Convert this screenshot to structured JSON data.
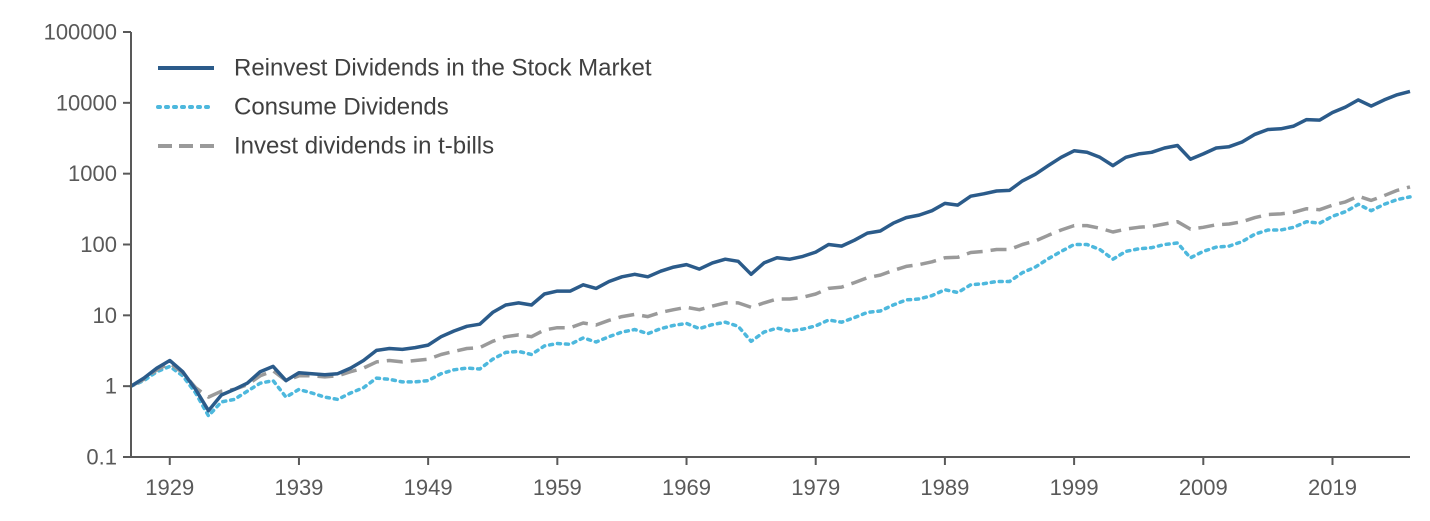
{
  "chart_data": {
    "type": "line",
    "title": "",
    "xlabel": "",
    "ylabel": "",
    "yscale": "log",
    "ylim": [
      0.1,
      100000
    ],
    "xlim": [
      1926,
      2025
    ],
    "y_ticks": [
      {
        "value": 0.1,
        "label": "0.1"
      },
      {
        "value": 1,
        "label": "1"
      },
      {
        "value": 10,
        "label": "10"
      },
      {
        "value": 100,
        "label": "100"
      },
      {
        "value": 1000,
        "label": "1000"
      },
      {
        "value": 10000,
        "label": "10000"
      },
      {
        "value": 100000,
        "label": "100000"
      }
    ],
    "x_ticks": [
      {
        "value": 1929,
        "label": "1929"
      },
      {
        "value": 1939,
        "label": "1939"
      },
      {
        "value": 1949,
        "label": "1949"
      },
      {
        "value": 1959,
        "label": "1959"
      },
      {
        "value": 1969,
        "label": "1969"
      },
      {
        "value": 1979,
        "label": "1979"
      },
      {
        "value": 1989,
        "label": "1989"
      },
      {
        "value": 1999,
        "label": "1999"
      },
      {
        "value": 2009,
        "label": "2009"
      },
      {
        "value": 2019,
        "label": "2019"
      }
    ],
    "legend_position": "top-left",
    "series": [
      {
        "name": "Reinvest Dividends in the Stock Market",
        "color": "#2b5b8a",
        "style": "solid",
        "points": [
          [
            1926,
            1
          ],
          [
            1927,
            1.3
          ],
          [
            1928,
            1.8
          ],
          [
            1929,
            2.3
          ],
          [
            1930,
            1.6
          ],
          [
            1931,
            0.9
          ],
          [
            1932,
            0.45
          ],
          [
            1933,
            0.75
          ],
          [
            1934,
            0.9
          ],
          [
            1935,
            1.1
          ],
          [
            1936,
            1.6
          ],
          [
            1937,
            1.9
          ],
          [
            1938,
            1.2
          ],
          [
            1939,
            1.55
          ],
          [
            1940,
            1.5
          ],
          [
            1941,
            1.45
          ],
          [
            1942,
            1.5
          ],
          [
            1943,
            1.8
          ],
          [
            1944,
            2.3
          ],
          [
            1945,
            3.2
          ],
          [
            1946,
            3.4
          ],
          [
            1947,
            3.3
          ],
          [
            1948,
            3.5
          ],
          [
            1949,
            3.8
          ],
          [
            1950,
            5
          ],
          [
            1951,
            6
          ],
          [
            1952,
            7
          ],
          [
            1953,
            7.5
          ],
          [
            1954,
            11
          ],
          [
            1955,
            14
          ],
          [
            1956,
            15
          ],
          [
            1957,
            14
          ],
          [
            1958,
            20
          ],
          [
            1959,
            22
          ],
          [
            1960,
            22
          ],
          [
            1961,
            27
          ],
          [
            1962,
            24
          ],
          [
            1963,
            30
          ],
          [
            1964,
            35
          ],
          [
            1965,
            38
          ],
          [
            1966,
            35
          ],
          [
            1967,
            42
          ],
          [
            1968,
            48
          ],
          [
            1969,
            52
          ],
          [
            1970,
            45
          ],
          [
            1971,
            55
          ],
          [
            1972,
            62
          ],
          [
            1973,
            58
          ],
          [
            1974,
            38
          ],
          [
            1975,
            55
          ],
          [
            1976,
            65
          ],
          [
            1977,
            62
          ],
          [
            1978,
            68
          ],
          [
            1979,
            78
          ],
          [
            1980,
            100
          ],
          [
            1981,
            95
          ],
          [
            1982,
            115
          ],
          [
            1983,
            145
          ],
          [
            1984,
            155
          ],
          [
            1985,
            200
          ],
          [
            1986,
            240
          ],
          [
            1987,
            260
          ],
          [
            1988,
            300
          ],
          [
            1989,
            380
          ],
          [
            1990,
            360
          ],
          [
            1991,
            480
          ],
          [
            1992,
            520
          ],
          [
            1993,
            570
          ],
          [
            1994,
            580
          ],
          [
            1995,
            790
          ],
          [
            1996,
            980
          ],
          [
            1997,
            1300
          ],
          [
            1998,
            1700
          ],
          [
            1999,
            2100
          ],
          [
            2000,
            2000
          ],
          [
            2001,
            1700
          ],
          [
            2002,
            1300
          ],
          [
            2003,
            1700
          ],
          [
            2004,
            1900
          ],
          [
            2005,
            2000
          ],
          [
            2006,
            2300
          ],
          [
            2007,
            2500
          ],
          [
            2008,
            1600
          ],
          [
            2009,
            1900
          ],
          [
            2010,
            2300
          ],
          [
            2011,
            2400
          ],
          [
            2012,
            2800
          ],
          [
            2013,
            3600
          ],
          [
            2014,
            4200
          ],
          [
            2015,
            4300
          ],
          [
            2016,
            4700
          ],
          [
            2017,
            5800
          ],
          [
            2018,
            5700
          ],
          [
            2019,
            7300
          ],
          [
            2020,
            8700
          ],
          [
            2021,
            11000
          ],
          [
            2022,
            9000
          ],
          [
            2023,
            11000
          ],
          [
            2024,
            13000
          ],
          [
            2025,
            14500
          ]
        ]
      },
      {
        "name": "Consume Dividends",
        "color": "#4db8dd",
        "style": "dotted",
        "points": [
          [
            1926,
            1
          ],
          [
            1927,
            1.2
          ],
          [
            1928,
            1.6
          ],
          [
            1929,
            1.9
          ],
          [
            1930,
            1.4
          ],
          [
            1931,
            0.8
          ],
          [
            1932,
            0.38
          ],
          [
            1933,
            0.6
          ],
          [
            1934,
            0.65
          ],
          [
            1935,
            0.85
          ],
          [
            1936,
            1.1
          ],
          [
            1937,
            1.2
          ],
          [
            1938,
            0.7
          ],
          [
            1939,
            0.9
          ],
          [
            1940,
            0.8
          ],
          [
            1941,
            0.7
          ],
          [
            1942,
            0.65
          ],
          [
            1943,
            0.8
          ],
          [
            1944,
            0.95
          ],
          [
            1945,
            1.3
          ],
          [
            1946,
            1.25
          ],
          [
            1947,
            1.15
          ],
          [
            1948,
            1.15
          ],
          [
            1949,
            1.2
          ],
          [
            1950,
            1.5
          ],
          [
            1951,
            1.7
          ],
          [
            1952,
            1.8
          ],
          [
            1953,
            1.75
          ],
          [
            1954,
            2.4
          ],
          [
            1955,
            3
          ],
          [
            1956,
            3.1
          ],
          [
            1957,
            2.8
          ],
          [
            1958,
            3.7
          ],
          [
            1959,
            4
          ],
          [
            1960,
            3.9
          ],
          [
            1961,
            4.8
          ],
          [
            1962,
            4.2
          ],
          [
            1963,
            5
          ],
          [
            1964,
            5.8
          ],
          [
            1965,
            6.3
          ],
          [
            1966,
            5.5
          ],
          [
            1967,
            6.5
          ],
          [
            1968,
            7.2
          ],
          [
            1969,
            7.7
          ],
          [
            1970,
            6.5
          ],
          [
            1971,
            7.4
          ],
          [
            1972,
            8
          ],
          [
            1973,
            7
          ],
          [
            1974,
            4.3
          ],
          [
            1975,
            5.8
          ],
          [
            1976,
            6.6
          ],
          [
            1977,
            6
          ],
          [
            1978,
            6.4
          ],
          [
            1979,
            7.1
          ],
          [
            1980,
            8.6
          ],
          [
            1981,
            8
          ],
          [
            1982,
            9.3
          ],
          [
            1983,
            11
          ],
          [
            1984,
            11.5
          ],
          [
            1985,
            14
          ],
          [
            1986,
            16.5
          ],
          [
            1987,
            17
          ],
          [
            1988,
            19
          ],
          [
            1989,
            23
          ],
          [
            1990,
            21
          ],
          [
            1991,
            27
          ],
          [
            1992,
            28
          ],
          [
            1993,
            30
          ],
          [
            1994,
            30
          ],
          [
            1995,
            40
          ],
          [
            1996,
            48
          ],
          [
            1997,
            63
          ],
          [
            1998,
            80
          ],
          [
            1999,
            100
          ],
          [
            2000,
            100
          ],
          [
            2001,
            85
          ],
          [
            2002,
            62
          ],
          [
            2003,
            80
          ],
          [
            2004,
            87
          ],
          [
            2005,
            90
          ],
          [
            2006,
            100
          ],
          [
            2007,
            105
          ],
          [
            2008,
            65
          ],
          [
            2009,
            80
          ],
          [
            2010,
            92
          ],
          [
            2011,
            95
          ],
          [
            2012,
            110
          ],
          [
            2013,
            140
          ],
          [
            2014,
            160
          ],
          [
            2015,
            160
          ],
          [
            2016,
            175
          ],
          [
            2017,
            210
          ],
          [
            2018,
            200
          ],
          [
            2019,
            250
          ],
          [
            2020,
            290
          ],
          [
            2021,
            370
          ],
          [
            2022,
            300
          ],
          [
            2023,
            370
          ],
          [
            2024,
            430
          ],
          [
            2025,
            470
          ]
        ]
      },
      {
        "name": "Invest dividends in t-bills",
        "color": "#9a9a9a",
        "style": "dashed",
        "points": [
          [
            1926,
            1
          ],
          [
            1927,
            1.25
          ],
          [
            1928,
            1.7
          ],
          [
            1929,
            2.1
          ],
          [
            1930,
            1.55
          ],
          [
            1931,
            0.95
          ],
          [
            1932,
            0.7
          ],
          [
            1933,
            0.85
          ],
          [
            1934,
            0.9
          ],
          [
            1935,
            1.05
          ],
          [
            1936,
            1.4
          ],
          [
            1937,
            1.65
          ],
          [
            1938,
            1.2
          ],
          [
            1939,
            1.4
          ],
          [
            1940,
            1.4
          ],
          [
            1941,
            1.35
          ],
          [
            1942,
            1.4
          ],
          [
            1943,
            1.6
          ],
          [
            1944,
            1.8
          ],
          [
            1945,
            2.2
          ],
          [
            1946,
            2.3
          ],
          [
            1947,
            2.2
          ],
          [
            1948,
            2.3
          ],
          [
            1949,
            2.4
          ],
          [
            1950,
            2.8
          ],
          [
            1951,
            3.1
          ],
          [
            1952,
            3.4
          ],
          [
            1953,
            3.5
          ],
          [
            1954,
            4.3
          ],
          [
            1955,
            5
          ],
          [
            1956,
            5.3
          ],
          [
            1957,
            5
          ],
          [
            1958,
            6.2
          ],
          [
            1959,
            6.7
          ],
          [
            1960,
            6.7
          ],
          [
            1961,
            7.8
          ],
          [
            1962,
            7.3
          ],
          [
            1963,
            8.5
          ],
          [
            1964,
            9.6
          ],
          [
            1965,
            10.3
          ],
          [
            1966,
            9.6
          ],
          [
            1967,
            11
          ],
          [
            1968,
            12
          ],
          [
            1969,
            13
          ],
          [
            1970,
            12
          ],
          [
            1971,
            13.5
          ],
          [
            1972,
            15
          ],
          [
            1973,
            15
          ],
          [
            1974,
            13
          ],
          [
            1975,
            15
          ],
          [
            1976,
            17
          ],
          [
            1977,
            17
          ],
          [
            1978,
            18
          ],
          [
            1979,
            20
          ],
          [
            1980,
            24
          ],
          [
            1981,
            25
          ],
          [
            1982,
            29
          ],
          [
            1983,
            34
          ],
          [
            1984,
            37
          ],
          [
            1985,
            43
          ],
          [
            1986,
            49
          ],
          [
            1987,
            52
          ],
          [
            1988,
            57
          ],
          [
            1989,
            65
          ],
          [
            1990,
            66
          ],
          [
            1991,
            77
          ],
          [
            1992,
            80
          ],
          [
            1993,
            85
          ],
          [
            1994,
            85
          ],
          [
            1995,
            100
          ],
          [
            1996,
            112
          ],
          [
            1997,
            135
          ],
          [
            1998,
            160
          ],
          [
            1999,
            185
          ],
          [
            2000,
            185
          ],
          [
            2001,
            170
          ],
          [
            2002,
            150
          ],
          [
            2003,
            165
          ],
          [
            2004,
            175
          ],
          [
            2005,
            180
          ],
          [
            2006,
            195
          ],
          [
            2007,
            210
          ],
          [
            2008,
            165
          ],
          [
            2009,
            175
          ],
          [
            2010,
            190
          ],
          [
            2011,
            195
          ],
          [
            2012,
            210
          ],
          [
            2013,
            240
          ],
          [
            2014,
            265
          ],
          [
            2015,
            270
          ],
          [
            2016,
            285
          ],
          [
            2017,
            320
          ],
          [
            2018,
            310
          ],
          [
            2019,
            360
          ],
          [
            2020,
            400
          ],
          [
            2021,
            480
          ],
          [
            2022,
            420
          ],
          [
            2023,
            490
          ],
          [
            2024,
            580
          ],
          [
            2025,
            650
          ]
        ]
      }
    ]
  }
}
